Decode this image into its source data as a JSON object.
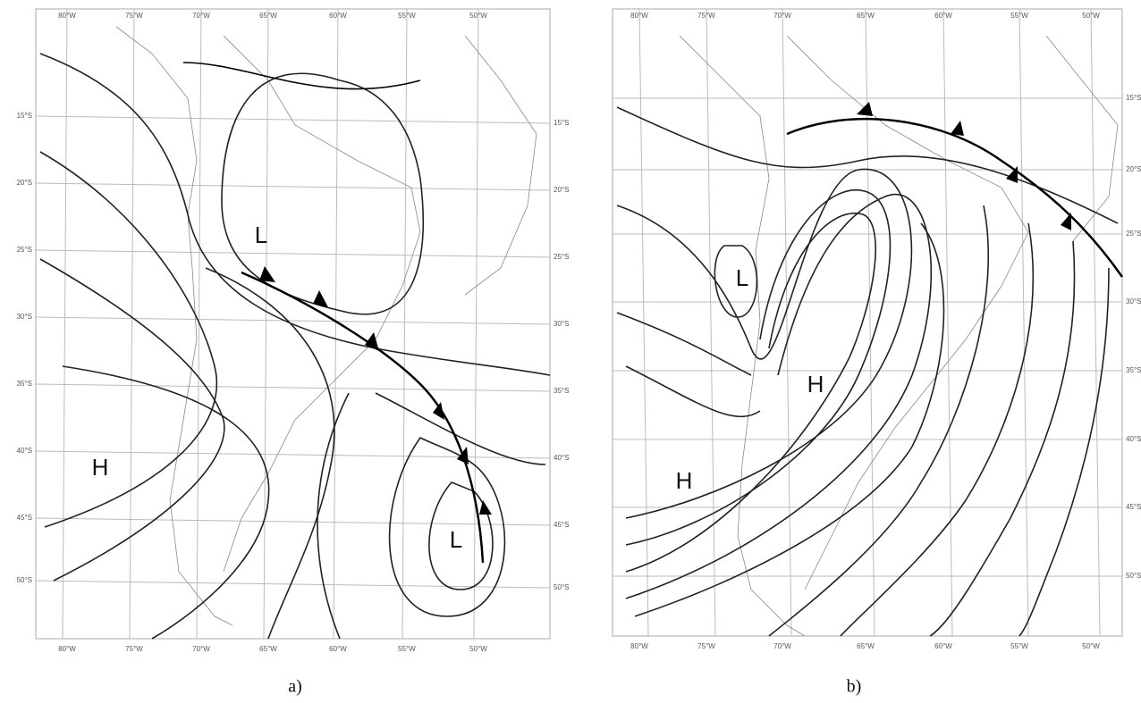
{
  "panels": [
    {
      "caption": "a)",
      "lon_labels": [
        "80°W",
        "75°W",
        "70°W",
        "65°W",
        "60°W",
        "55°W",
        "50°W"
      ],
      "lat_labels": [
        "15°S",
        "20°S",
        "25°S",
        "30°S",
        "35°S",
        "40°S",
        "45°S",
        "50°S"
      ],
      "pressure_centers": [
        "L",
        "H",
        "L"
      ]
    },
    {
      "caption": "b)",
      "lon_labels": [
        "80°W",
        "75°W",
        "70°W",
        "65°W",
        "60°W",
        "55°W",
        "50°W"
      ],
      "lat_labels": [
        "15°S",
        "20°S",
        "25°S",
        "30°S",
        "35°S",
        "40°S",
        "45°S",
        "50°S"
      ],
      "pressure_centers": [
        "L",
        "H",
        "H"
      ]
    }
  ]
}
